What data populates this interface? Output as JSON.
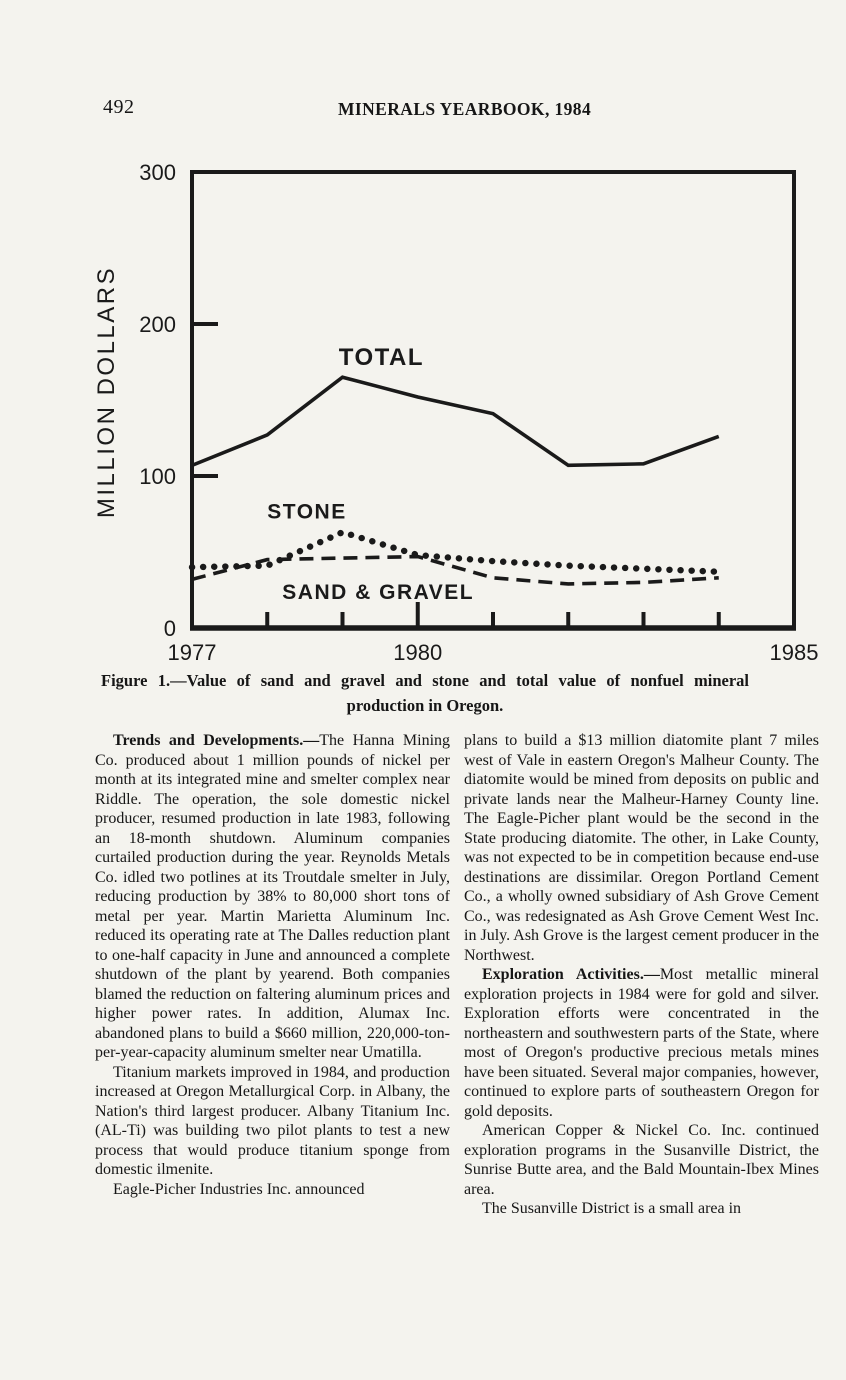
{
  "page": {
    "page_number": "492",
    "title": "MINERALS YEARBOOK, 1984"
  },
  "figure": {
    "caption_line1": "Figure 1.—Value of sand and gravel and stone and total value of nonfuel mineral",
    "caption_line2": "production in Oregon."
  },
  "chart_data": {
    "type": "line",
    "title": "",
    "xlabel": "",
    "ylabel": "MILLION DOLLARS",
    "x": [
      1977,
      1978,
      1979,
      1980,
      1981,
      1982,
      1983,
      1984
    ],
    "xlim": [
      1977,
      1985
    ],
    "ylim": [
      0,
      300
    ],
    "yticks": [
      0,
      100,
      200,
      300
    ],
    "xtick_years": [
      1978,
      1979,
      1980,
      1981,
      1982,
      1983,
      1984
    ],
    "xtick_major": 1980,
    "xtick_labels": [
      {
        "year": 1977,
        "label": "1977"
      },
      {
        "year": 1980,
        "label": "1980"
      },
      {
        "year": 1985,
        "label": "1985"
      }
    ],
    "grid": false,
    "legend": "inline-labels",
    "series": [
      {
        "name": "TOTAL",
        "style": "solid",
        "values": [
          107,
          127,
          165,
          152,
          141,
          107,
          108,
          126
        ],
        "label_pos": {
          "year": 1978.95,
          "value": 173
        },
        "label_size": 24
      },
      {
        "name": "STONE",
        "style": "dotted",
        "values": [
          40,
          41,
          63,
          48,
          44,
          41,
          39,
          37
        ],
        "label_pos": {
          "year": 1978.0,
          "value": 72
        },
        "label_size": 21
      },
      {
        "name": "SAND & GRAVEL",
        "style": "dashed",
        "values": [
          32,
          45,
          46,
          47,
          33,
          29,
          30,
          33
        ],
        "label_pos": {
          "year": 1978.2,
          "value": 19
        },
        "label_size": 21
      }
    ]
  },
  "body": {
    "left": [
      {
        "lead": "Trends and Developments.—",
        "text": "The Hanna Mining Co. produced about 1 million pounds of nickel per month at its integrated mine and smelter complex near Riddle. The operation, the sole domestic nickel producer, resumed production in late 1983, following an 18-month shutdown. Aluminum companies curtailed production during the year. Reynolds Metals Co. idled two potlines at its Troutdale smelter in July, reducing production by 38% to 80,000 short tons of metal per year. Martin Marietta Aluminum Inc. reduced its operating rate at The Dalles reduction plant to one-half capacity in June and announced a complete shutdown of the plant by yearend. Both companies blamed the reduction on faltering aluminum prices and higher power rates. In addition, Alumax Inc. abandoned plans to build a $660 million, 220,000-ton-per-year-capacity aluminum smelter near Umatilla."
      },
      {
        "lead": "",
        "text": "Titanium markets improved in 1984, and production increased at Oregon Metallurgical Corp. in Albany, the Nation's third largest producer. Albany Titanium Inc. (AL-Ti) was building two pilot plants to test a new process that would produce titanium sponge from domestic ilmenite."
      },
      {
        "lead": "",
        "text": "Eagle-Picher Industries Inc. announced"
      }
    ],
    "right": [
      {
        "lead": "",
        "text": "plans to build a $13 million diatomite plant 7 miles west of Vale in eastern Oregon's Malheur County. The diatomite would be mined from deposits on public and private lands near the Malheur-Harney County line. The Eagle-Picher plant would be the second in the State producing diatomite. The other, in Lake County, was not expected to be in competition because end-use destinations are dissimilar. Oregon Portland Cement Co., a wholly owned subsidiary of Ash Grove Cement Co., was redesignated as Ash Grove Cement West Inc. in July. Ash Grove is the largest cement producer in the Northwest."
      },
      {
        "lead": "Exploration Activities.—",
        "text": "Most metallic mineral exploration projects in 1984 were for gold and silver. Exploration efforts were concentrated in the northeastern and southwestern parts of the State, where most of Oregon's productive precious metals mines have been situated. Several major companies, however, continued to explore parts of southeastern Oregon for gold deposits."
      },
      {
        "lead": "",
        "text": "American Copper & Nickel Co. Inc. continued exploration programs in the Susanville District, the Sunrise Butte area, and the Bald Mountain-Ibex Mines area."
      },
      {
        "lead": "",
        "text": "The Susanville District is a small area in"
      }
    ]
  }
}
